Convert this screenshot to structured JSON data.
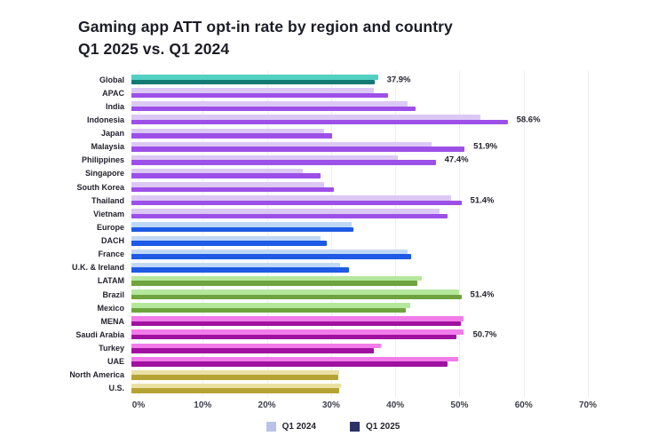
{
  "title": {
    "line1": "Gaming app ATT opt-in rate by region and country",
    "line2": "Q1 2025 vs. Q1 2024"
  },
  "legend": {
    "items": [
      {
        "label": "Q1 2024",
        "color": "#b7c3e8"
      },
      {
        "label": "Q1 2025",
        "color": "#2c3166"
      }
    ]
  },
  "chart_data": {
    "type": "bar",
    "orientation": "horizontal",
    "title": "Gaming app ATT opt-in rate by region and country Q1 2025 vs. Q1 2024",
    "xlabel": "",
    "ylabel": "",
    "xlim": [
      0,
      70
    ],
    "x_ticks": [
      "0%",
      "10%",
      "20%",
      "30%",
      "40%",
      "50%",
      "60%",
      "70%"
    ],
    "grid": true,
    "legend_position": "bottom",
    "series_names": [
      "Q1 2024",
      "Q1 2025"
    ],
    "group_colors": {
      "global": {
        "light": "#53cfc3",
        "dark": "#117a74"
      },
      "apac": {
        "light": "#dcc8f5",
        "dark": "#9d50e8"
      },
      "europe": {
        "light": "#bfd8f5",
        "dark": "#1e5ae5"
      },
      "latam": {
        "light": "#b5e79c",
        "dark": "#6fa33e"
      },
      "mena": {
        "light": "#f27ce9",
        "dark": "#a011a0"
      },
      "na": {
        "light": "#ebe0a4",
        "dark": "#b5a434"
      }
    },
    "rows": [
      {
        "label": "Global",
        "group": "global",
        "q1_2024": 38.4,
        "q1_2025": 37.9,
        "value_label": "37.9%"
      },
      {
        "label": "APAC",
        "group": "apac",
        "q1_2024": 37.8,
        "q1_2025": 40.0,
        "value_label": ""
      },
      {
        "label": "India",
        "group": "apac",
        "q1_2024": 43.0,
        "q1_2025": 44.2,
        "value_label": ""
      },
      {
        "label": "Indonesia",
        "group": "apac",
        "q1_2024": 54.4,
        "q1_2025": 58.6,
        "value_label": "58.6%"
      },
      {
        "label": "Japan",
        "group": "apac",
        "q1_2024": 30.0,
        "q1_2025": 31.3,
        "value_label": ""
      },
      {
        "label": "Malaysia",
        "group": "apac",
        "q1_2024": 46.8,
        "q1_2025": 51.9,
        "value_label": "51.9%"
      },
      {
        "label": "Philippines",
        "group": "apac",
        "q1_2024": 41.5,
        "q1_2025": 47.4,
        "value_label": "47.4%"
      },
      {
        "label": "Singapore",
        "group": "apac",
        "q1_2024": 26.7,
        "q1_2025": 29.5,
        "value_label": ""
      },
      {
        "label": "South Korea",
        "group": "apac",
        "q1_2024": 30.0,
        "q1_2025": 31.6,
        "value_label": ""
      },
      {
        "label": "Thailand",
        "group": "apac",
        "q1_2024": 49.8,
        "q1_2025": 51.4,
        "value_label": "51.4%"
      },
      {
        "label": "Vietnam",
        "group": "apac",
        "q1_2024": 48.0,
        "q1_2025": 49.3,
        "value_label": ""
      },
      {
        "label": "Europe",
        "group": "europe",
        "q1_2024": 34.3,
        "q1_2025": 34.6,
        "value_label": ""
      },
      {
        "label": "DACH",
        "group": "europe",
        "q1_2024": 29.5,
        "q1_2025": 30.4,
        "value_label": ""
      },
      {
        "label": "France",
        "group": "europe",
        "q1_2024": 43.0,
        "q1_2025": 43.6,
        "value_label": ""
      },
      {
        "label": "U.K. & Ireland",
        "group": "europe",
        "q1_2024": 32.5,
        "q1_2025": 33.9,
        "value_label": ""
      },
      {
        "label": "LATAM",
        "group": "latam",
        "q1_2024": 45.3,
        "q1_2025": 44.5,
        "value_label": ""
      },
      {
        "label": "Brazil",
        "group": "latam",
        "q1_2024": 51.0,
        "q1_2025": 51.4,
        "value_label": "51.4%"
      },
      {
        "label": "Mexico",
        "group": "latam",
        "q1_2024": 43.5,
        "q1_2025": 42.8,
        "value_label": ""
      },
      {
        "label": "MENA",
        "group": "mena",
        "q1_2024": 51.7,
        "q1_2025": 51.3,
        "value_label": ""
      },
      {
        "label": "Saudi Arabia",
        "group": "mena",
        "q1_2024": 51.8,
        "q1_2025": 50.7,
        "value_label": "50.7%"
      },
      {
        "label": "Turkey",
        "group": "mena",
        "q1_2024": 38.9,
        "q1_2025": 37.8,
        "value_label": ""
      },
      {
        "label": "UAE",
        "group": "mena",
        "q1_2024": 50.9,
        "q1_2025": 49.2,
        "value_label": ""
      },
      {
        "label": "North America",
        "group": "na",
        "q1_2024": 32.4,
        "q1_2025": 32.2,
        "value_label": ""
      },
      {
        "label": "U.S.",
        "group": "na",
        "q1_2024": 32.6,
        "q1_2025": 32.4,
        "value_label": ""
      }
    ]
  }
}
